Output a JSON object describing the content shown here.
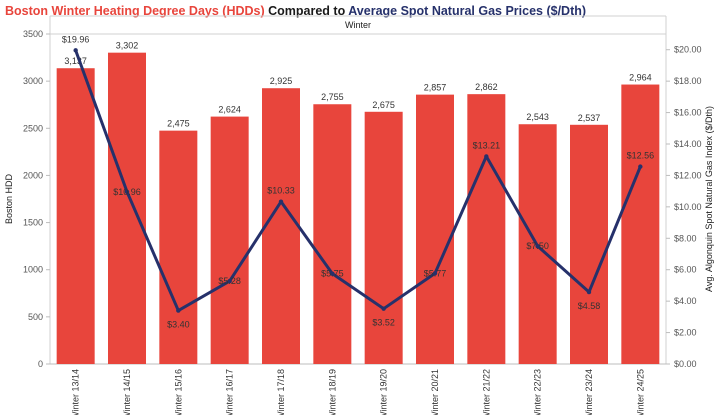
{
  "title": {
    "part1": "Boston Winter Heating Degree Days (HDDs)",
    "part2": " Compared to ",
    "part3": "Average Spot Natural Gas Prices ($/Dth)"
  },
  "colors": {
    "bars": "#e8453c",
    "line": "#26316b",
    "title_red": "#e8453c",
    "title_navy": "#26316b"
  },
  "chart_data": {
    "type": "bar",
    "column_header": "Winter",
    "categories": [
      "Winter 13/14",
      "Winter 14/15",
      "Winter 15/16",
      "Winter 16/17",
      "Winter 17/18",
      "Winter 18/19",
      "Winter 19/20",
      "Winter 20/21",
      "Winter 21/22",
      "Winter 22/23",
      "Winter 23/24",
      "Winter 24/25"
    ],
    "series": [
      {
        "type": "bar",
        "axis": "left",
        "values": [
          3137,
          3302,
          2475,
          2624,
          2925,
          2755,
          2675,
          2857,
          2862,
          2543,
          2537,
          2964
        ],
        "labels": [
          "3,137",
          "3,302",
          "2,475",
          "2,624",
          "2,925",
          "2,755",
          "2,675",
          "2,857",
          "2,862",
          "2,543",
          "2,537",
          "2,964"
        ]
      },
      {
        "type": "line",
        "axis": "right",
        "values": [
          19.96,
          10.96,
          3.4,
          5.28,
          10.33,
          5.75,
          3.52,
          5.77,
          13.21,
          7.5,
          4.58,
          12.56
        ],
        "labels": [
          "$19.96",
          "$10.96",
          "$3.40",
          "$5.28",
          "$10.33",
          "$5.75",
          "$3.52",
          "$5.77",
          "$13.21",
          "$7.50",
          "$4.58",
          "$12.56"
        ]
      }
    ],
    "ylabel_left": "Boston HDD",
    "ylabel_right": "Avg. Algonquin Spot Natural Gas Index ($/Dth)",
    "ylim_left": [
      0,
      3500
    ],
    "ylim_right": [
      0,
      21
    ],
    "yticks_left": [
      "0",
      "500",
      "1000",
      "1500",
      "2000",
      "2500",
      "3000",
      "3500"
    ],
    "yticks_right": [
      "$0.00",
      "$2.00",
      "$4.00",
      "$6.00",
      "$8.00",
      "$10.00",
      "$12.00",
      "$14.00",
      "$16.00",
      "$18.00",
      "$20.00"
    ],
    "grid": false
  }
}
